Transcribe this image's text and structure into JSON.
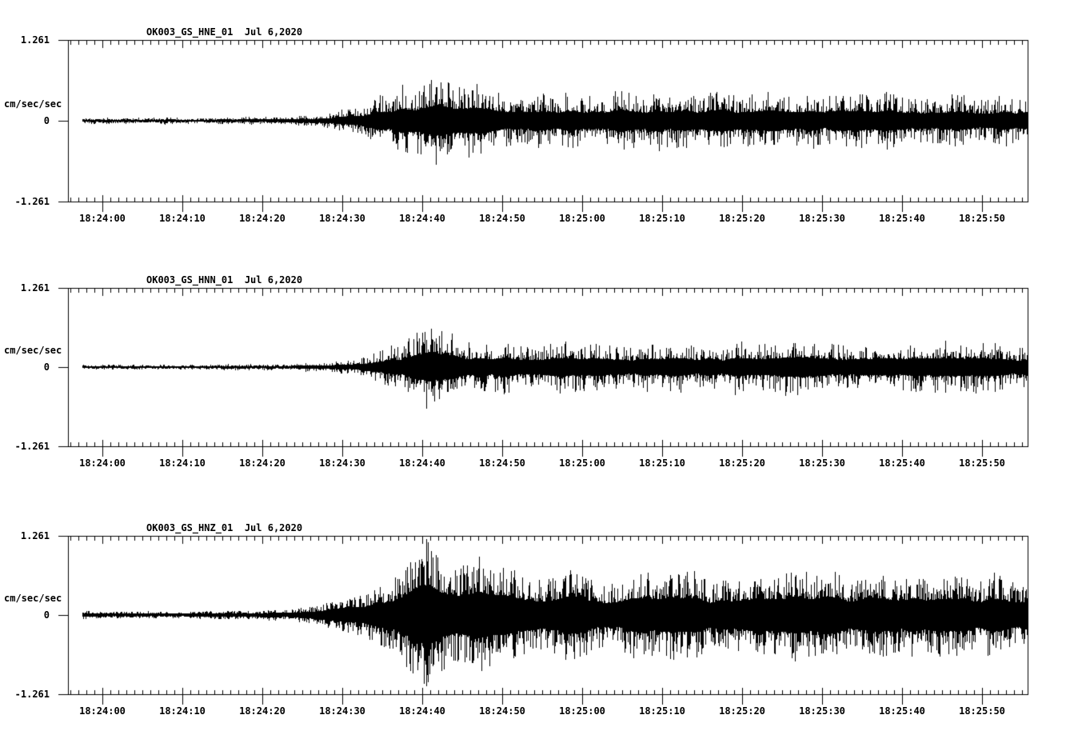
{
  "page": {
    "background_color": "#ffffff",
    "ink_color": "#000000"
  },
  "chart_data": [
    {
      "type": "seismogram",
      "station_channel": "OK003_GS_HNE_01",
      "date": "Jul 6,2020",
      "title": "OK003_GS_HNE_01  Jul 6,2020",
      "ylabel": "cm/sec/sec",
      "ylim": [
        -1.261,
        1.261
      ],
      "ytick_labels": [
        "1.261",
        "0",
        "-1.261"
      ],
      "xtick_labels": [
        "18:24:00",
        "18:24:10",
        "18:24:20",
        "18:24:30",
        "18:24:40",
        "18:24:50",
        "18:25:00",
        "18:25:10",
        "18:25:20",
        "18:25:30",
        "18:25:40",
        "18:25:50"
      ],
      "x_major_tick_seconds": 10,
      "x_minor_tick_seconds": 1,
      "envelope": {
        "t_seconds_after_18_24_00": [
          -2.5,
          10,
          18,
          23,
          26,
          29,
          31,
          33,
          35,
          37,
          39,
          41,
          43,
          45,
          48,
          52,
          57,
          63,
          70,
          78,
          86,
          95,
          105,
          115.7
        ],
        "amplitude": [
          0.05,
          0.052,
          0.06,
          0.08,
          0.1,
          0.14,
          0.2,
          0.32,
          0.45,
          0.55,
          0.62,
          0.7,
          0.62,
          0.56,
          0.52,
          0.48,
          0.46,
          0.48,
          0.44,
          0.47,
          0.43,
          0.45,
          0.41,
          0.4
        ]
      },
      "waveform_style": {
        "core_fraction": 0.33,
        "spike_exponent": 3.0,
        "seed": 101
      }
    },
    {
      "type": "seismogram",
      "station_channel": "OK003_GS_HNN_01",
      "date": "Jul 6,2020",
      "title": "OK003_GS_HNN_01  Jul 6,2020",
      "ylabel": "cm/sec/sec",
      "ylim": [
        -1.261,
        1.261
      ],
      "ytick_labels": [
        "1.261",
        "0",
        "-1.261"
      ],
      "xtick_labels": [
        "18:24:00",
        "18:24:10",
        "18:24:20",
        "18:24:30",
        "18:24:40",
        "18:24:50",
        "18:25:00",
        "18:25:10",
        "18:25:20",
        "18:25:30",
        "18:25:40",
        "18:25:50"
      ],
      "x_major_tick_seconds": 10,
      "x_minor_tick_seconds": 1,
      "envelope": {
        "t_seconds_after_18_24_00": [
          -2.5,
          10,
          20,
          25,
          28,
          31,
          33,
          35,
          37,
          39,
          41,
          43,
          45,
          48,
          52,
          58,
          65,
          72,
          80,
          88,
          96,
          105,
          115.7
        ],
        "amplitude": [
          0.042,
          0.045,
          0.05,
          0.065,
          0.085,
          0.12,
          0.18,
          0.28,
          0.4,
          0.52,
          0.65,
          0.55,
          0.46,
          0.42,
          0.4,
          0.38,
          0.4,
          0.37,
          0.4,
          0.42,
          0.38,
          0.4,
          0.37
        ]
      },
      "waveform_style": {
        "core_fraction": 0.33,
        "spike_exponent": 3.0,
        "seed": 202
      }
    },
    {
      "type": "seismogram",
      "station_channel": "OK003_GS_HNZ_01",
      "date": "Jul 6,2020",
      "title": "OK003_GS_HNZ_01  Jul 6,2020",
      "ylabel": "cm/sec/sec",
      "ylim": [
        -1.261,
        1.261
      ],
      "ytick_labels": [
        "1.261",
        "0",
        "-1.261"
      ],
      "xtick_labels": [
        "18:24:00",
        "18:24:10",
        "18:24:20",
        "18:24:30",
        "18:24:40",
        "18:24:50",
        "18:25:00",
        "18:25:10",
        "18:25:20",
        "18:25:30",
        "18:25:40",
        "18:25:50"
      ],
      "x_major_tick_seconds": 10,
      "x_minor_tick_seconds": 1,
      "envelope": {
        "t_seconds_after_18_24_00": [
          -2.5,
          10,
          18,
          22,
          25,
          27,
          29,
          31,
          33,
          35,
          37,
          39,
          41,
          43,
          45,
          47,
          50,
          54,
          58,
          63,
          70,
          78,
          86,
          94,
          102,
          110,
          115.7
        ],
        "amplitude": [
          0.055,
          0.06,
          0.07,
          0.09,
          0.12,
          0.16,
          0.28,
          0.3,
          0.36,
          0.5,
          0.75,
          1.05,
          1.32,
          1.1,
          0.85,
          0.9,
          0.72,
          0.64,
          0.68,
          0.62,
          0.66,
          0.61,
          0.68,
          0.63,
          0.66,
          0.62,
          0.63
        ]
      },
      "waveform_style": {
        "core_fraction": 0.38,
        "spike_exponent": 2.2,
        "seed": 303
      }
    }
  ]
}
